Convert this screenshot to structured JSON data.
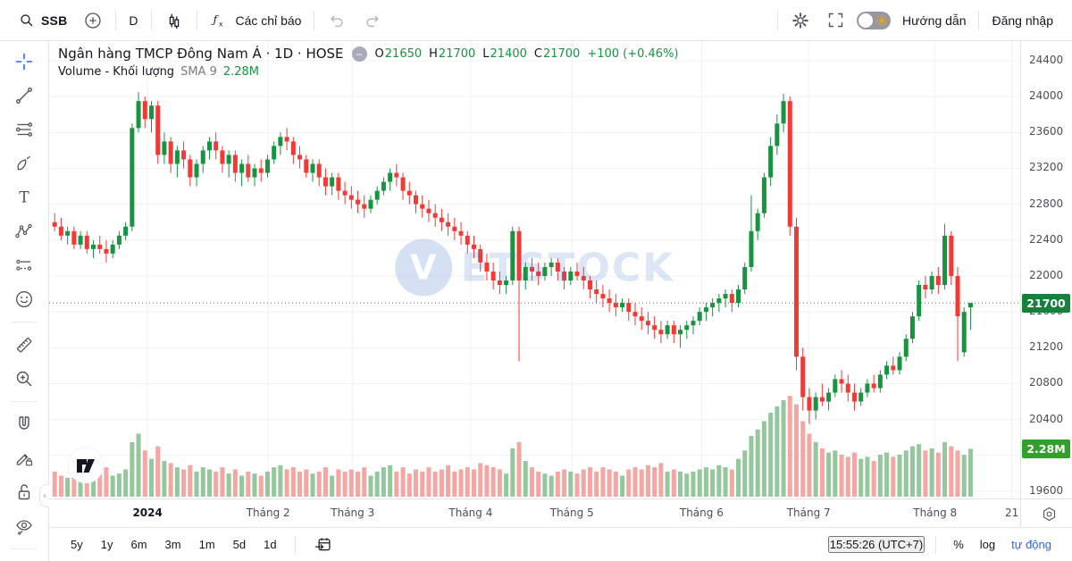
{
  "topbar": {
    "symbol": "SSB",
    "interval": "D",
    "indicators_label": "Các chỉ báo",
    "guide_label": "Hướng dẫn",
    "login_label": "Đăng nhập"
  },
  "legend": {
    "title": "Ngân hàng TMCP Đông Nam Á · 1D · HOSE",
    "ohlc": {
      "o_label": "O",
      "o": "21650",
      "h_label": "H",
      "h": "21700",
      "l_label": "L",
      "l": "21400",
      "c_label": "C",
      "c": "21700",
      "change": "+100 (+0.46%)"
    },
    "indicator": {
      "name": "Volume - Khối lượng",
      "param": "SMA 9",
      "value": "2.28M"
    }
  },
  "watermark": {
    "logo": "V",
    "text": "ETSTOCK"
  },
  "sidebar": {
    "tools": [
      "crosshair",
      "trend-line",
      "fib-retracement",
      "brush",
      "text",
      "xabcd-pattern",
      "projection",
      "emoji",
      "measure",
      "zoom-in",
      "magnet",
      "drawing-mode-lock",
      "lock-all-drawings",
      "hide-all-drawings"
    ]
  },
  "timeframes": [
    "5y",
    "1y",
    "6m",
    "3m",
    "1m",
    "5d",
    "1d"
  ],
  "statusbar": {
    "clock": "15:55:26 (UTC+7)",
    "percent": "%",
    "log": "log",
    "auto": "tự động"
  },
  "price_scale": {
    "last_price_label": "21700",
    "volume_label": "2.28M"
  },
  "colors": {
    "up": "#169440",
    "down": "#f23936",
    "vol_up": "#94c79c",
    "vol_down": "#f4a6a3",
    "accent": "#2962ff",
    "grid": "#eef1f5",
    "tag_price": "#15813c",
    "tag_volume": "#33a02c"
  },
  "chart_data": {
    "type": "candlestick",
    "title": "Ngân hàng TMCP Đông Nam Á (SSB) · 1D · HOSE",
    "last_price": 21700,
    "change": 100,
    "change_pct": 0.46,
    "volume_label": "2.28M",
    "y_axis": {
      "max": 24400,
      "min": 19600,
      "tick_step": 400,
      "ticks": [
        24400,
        24000,
        23600,
        23200,
        22800,
        22400,
        22000,
        21600,
        21200,
        20800,
        20400,
        20000,
        19600
      ]
    },
    "x_axis": {
      "ticks": [
        {
          "label": "2024",
          "index": 14.4,
          "bold": true
        },
        {
          "label": "Tháng 2",
          "index": 33.1
        },
        {
          "label": "Tháng 3",
          "index": 46.2
        },
        {
          "label": "Tháng 4",
          "index": 64.5
        },
        {
          "label": "Tháng 5",
          "index": 80.2
        },
        {
          "label": "Tháng 6",
          "index": 100.3
        },
        {
          "label": "Tháng 7",
          "index": 116.9
        },
        {
          "label": "Tháng 8",
          "index": 136.5
        },
        {
          "label": "21",
          "index": 148.4
        }
      ]
    },
    "series_format": "[open, high, low, close, volume_millions]",
    "series": [
      [
        22600,
        22700,
        22500,
        22550,
        1.2
      ],
      [
        22550,
        22650,
        22400,
        22450,
        1.0
      ],
      [
        22450,
        22550,
        22350,
        22500,
        0.9
      ],
      [
        22500,
        22550,
        22300,
        22350,
        1.1
      ],
      [
        22350,
        22500,
        22300,
        22450,
        0.8
      ],
      [
        22450,
        22500,
        22250,
        22300,
        1.3
      ],
      [
        22300,
        22400,
        22200,
        22350,
        1.5
      ],
      [
        22350,
        22450,
        22250,
        22300,
        1.2
      ],
      [
        22300,
        22400,
        22150,
        22250,
        1.4
      ],
      [
        22250,
        22400,
        22200,
        22350,
        1.0
      ],
      [
        22350,
        22500,
        22300,
        22450,
        1.1
      ],
      [
        22450,
        22600,
        22400,
        22550,
        1.3
      ],
      [
        22550,
        23700,
        22500,
        23650,
        2.6
      ],
      [
        23650,
        24050,
        23600,
        23950,
        3.0
      ],
      [
        23950,
        24000,
        23650,
        23750,
        2.2
      ],
      [
        23750,
        23950,
        23600,
        23900,
        1.8
      ],
      [
        23900,
        23950,
        23250,
        23350,
        2.4
      ],
      [
        23350,
        23600,
        23250,
        23500,
        1.7
      ],
      [
        23500,
        23550,
        23150,
        23250,
        1.6
      ],
      [
        23250,
        23450,
        23100,
        23400,
        1.4
      ],
      [
        23400,
        23500,
        23200,
        23300,
        1.3
      ],
      [
        23300,
        23350,
        23000,
        23100,
        1.5
      ],
      [
        23100,
        23300,
        23000,
        23250,
        1.2
      ],
      [
        23250,
        23450,
        23150,
        23400,
        1.4
      ],
      [
        23400,
        23550,
        23300,
        23500,
        1.3
      ],
      [
        23500,
        23600,
        23300,
        23400,
        1.2
      ],
      [
        23400,
        23450,
        23150,
        23250,
        1.4
      ],
      [
        23250,
        23400,
        23100,
        23350,
        1.1
      ],
      [
        23350,
        23400,
        23050,
        23150,
        1.3
      ],
      [
        23150,
        23300,
        23000,
        23250,
        1.0
      ],
      [
        23250,
        23350,
        23050,
        23100,
        1.2
      ],
      [
        23100,
        23250,
        23000,
        23200,
        1.1
      ],
      [
        23200,
        23300,
        23050,
        23150,
        1.0
      ],
      [
        23150,
        23350,
        23100,
        23300,
        1.2
      ],
      [
        23300,
        23500,
        23250,
        23450,
        1.4
      ],
      [
        23450,
        23600,
        23350,
        23550,
        1.5
      ],
      [
        23550,
        23650,
        23400,
        23500,
        1.3
      ],
      [
        23500,
        23550,
        23250,
        23350,
        1.4
      ],
      [
        23350,
        23450,
        23200,
        23300,
        1.2
      ],
      [
        23300,
        23350,
        23100,
        23150,
        1.3
      ],
      [
        23150,
        23300,
        23050,
        23250,
        1.1
      ],
      [
        23250,
        23300,
        23000,
        23100,
        1.2
      ],
      [
        23100,
        23200,
        22900,
        23000,
        1.4
      ],
      [
        23000,
        23150,
        22900,
        23100,
        1.0
      ],
      [
        23100,
        23150,
        22850,
        22950,
        1.3
      ],
      [
        22950,
        23050,
        22800,
        22900,
        1.2
      ],
      [
        22900,
        23000,
        22750,
        22850,
        1.3
      ],
      [
        22850,
        22950,
        22700,
        22800,
        1.2
      ],
      [
        22800,
        22900,
        22650,
        22750,
        1.4
      ],
      [
        22750,
        22900,
        22700,
        22850,
        1.0
      ],
      [
        22850,
        23000,
        22800,
        22950,
        1.2
      ],
      [
        22950,
        23100,
        22900,
        23050,
        1.4
      ],
      [
        23050,
        23200,
        22950,
        23150,
        1.5
      ],
      [
        23150,
        23250,
        23000,
        23100,
        1.2
      ],
      [
        23100,
        23150,
        22850,
        22950,
        1.4
      ],
      [
        22950,
        23050,
        22800,
        22900,
        1.1
      ],
      [
        22900,
        22950,
        22700,
        22800,
        1.3
      ],
      [
        22800,
        22900,
        22650,
        22750,
        1.2
      ],
      [
        22750,
        22850,
        22600,
        22700,
        1.4
      ],
      [
        22700,
        22800,
        22550,
        22650,
        1.2
      ],
      [
        22650,
        22750,
        22500,
        22600,
        1.3
      ],
      [
        22600,
        22700,
        22450,
        22550,
        1.5
      ],
      [
        22550,
        22650,
        22400,
        22500,
        1.2
      ],
      [
        22500,
        22600,
        22350,
        22450,
        1.3
      ],
      [
        22450,
        22500,
        22250,
        22350,
        1.4
      ],
      [
        22350,
        22450,
        22200,
        22300,
        1.3
      ],
      [
        22300,
        22350,
        22050,
        22150,
        1.6
      ],
      [
        22150,
        22250,
        21950,
        22050,
        1.5
      ],
      [
        22050,
        22150,
        21850,
        21950,
        1.4
      ],
      [
        21950,
        22050,
        21800,
        21900,
        1.3
      ],
      [
        21900,
        22000,
        21800,
        21950,
        1.1
      ],
      [
        21950,
        22550,
        21900,
        22500,
        2.3
      ],
      [
        22500,
        22550,
        21050,
        21950,
        2.6
      ],
      [
        21950,
        22150,
        21850,
        22100,
        1.7
      ],
      [
        22100,
        22200,
        21950,
        22050,
        1.4
      ],
      [
        22050,
        22150,
        21900,
        22000,
        1.2
      ],
      [
        22000,
        22150,
        21950,
        22100,
        1.1
      ],
      [
        22100,
        22200,
        22000,
        22150,
        1.0
      ],
      [
        22150,
        22200,
        21950,
        22050,
        1.2
      ],
      [
        22050,
        22100,
        21850,
        21950,
        1.3
      ],
      [
        21950,
        22100,
        21900,
        22050,
        1.2
      ],
      [
        22050,
        22150,
        21950,
        22000,
        1.1
      ],
      [
        22000,
        22100,
        21850,
        21950,
        1.3
      ],
      [
        21950,
        22000,
        21750,
        21850,
        1.4
      ],
      [
        21850,
        21950,
        21700,
        21800,
        1.2
      ],
      [
        21800,
        21900,
        21650,
        21750,
        1.4
      ],
      [
        21750,
        21850,
        21600,
        21700,
        1.3
      ],
      [
        21700,
        21800,
        21550,
        21650,
        1.2
      ],
      [
        21650,
        21750,
        21600,
        21700,
        1.0
      ],
      [
        21700,
        21750,
        21500,
        21600,
        1.3
      ],
      [
        21600,
        21700,
        21450,
        21550,
        1.4
      ],
      [
        21550,
        21650,
        21400,
        21500,
        1.3
      ],
      [
        21500,
        21600,
        21350,
        21450,
        1.5
      ],
      [
        21450,
        21550,
        21300,
        21400,
        1.4
      ],
      [
        21400,
        21500,
        21250,
        21350,
        1.6
      ],
      [
        21350,
        21500,
        21300,
        21450,
        1.2
      ],
      [
        21450,
        21500,
        21250,
        21350,
        1.3
      ],
      [
        21350,
        21450,
        21200,
        21400,
        1.2
      ],
      [
        21400,
        21500,
        21300,
        21450,
        1.1
      ],
      [
        21450,
        21550,
        21350,
        21500,
        1.2
      ],
      [
        21500,
        21650,
        21450,
        21600,
        1.3
      ],
      [
        21600,
        21700,
        21500,
        21650,
        1.4
      ],
      [
        21650,
        21750,
        21550,
        21700,
        1.3
      ],
      [
        21700,
        21800,
        21600,
        21750,
        1.5
      ],
      [
        21750,
        21850,
        21650,
        21800,
        1.4
      ],
      [
        21800,
        21850,
        21600,
        21700,
        1.3
      ],
      [
        21700,
        21900,
        21650,
        21850,
        1.8
      ],
      [
        21850,
        22150,
        21800,
        22100,
        2.2
      ],
      [
        22100,
        22900,
        22050,
        22500,
        2.9
      ],
      [
        22500,
        22750,
        22400,
        22700,
        3.2
      ],
      [
        22700,
        23150,
        22650,
        23100,
        3.6
      ],
      [
        23100,
        23550,
        23000,
        23450,
        4.0
      ],
      [
        23450,
        23800,
        23350,
        23700,
        4.3
      ],
      [
        23700,
        24030,
        23600,
        23950,
        4.6
      ],
      [
        23950,
        24000,
        22450,
        22550,
        4.8
      ],
      [
        22550,
        22650,
        20950,
        21100,
        4.4
      ],
      [
        21100,
        21200,
        20500,
        20650,
        3.6
      ],
      [
        20650,
        20750,
        20350,
        20500,
        3.0
      ],
      [
        20500,
        20700,
        20400,
        20650,
        2.6
      ],
      [
        20650,
        20800,
        20550,
        20600,
        2.3
      ],
      [
        20600,
        20750,
        20500,
        20700,
        2.1
      ],
      [
        20700,
        20900,
        20650,
        20850,
        2.2
      ],
      [
        20850,
        20950,
        20700,
        20800,
        2.0
      ],
      [
        20800,
        20900,
        20600,
        20700,
        1.9
      ],
      [
        20700,
        20800,
        20500,
        20600,
        2.1
      ],
      [
        20600,
        20750,
        20550,
        20700,
        1.8
      ],
      [
        20700,
        20850,
        20650,
        20800,
        1.9
      ],
      [
        20800,
        20900,
        20700,
        20750,
        1.7
      ],
      [
        20750,
        20950,
        20700,
        20900,
        2.0
      ],
      [
        20900,
        21050,
        20850,
        21000,
        2.1
      ],
      [
        21000,
        21100,
        20900,
        20950,
        1.9
      ],
      [
        20950,
        21150,
        20900,
        21100,
        2.0
      ],
      [
        21100,
        21350,
        21050,
        21300,
        2.2
      ],
      [
        21300,
        21600,
        21250,
        21550,
        2.4
      ],
      [
        21550,
        21950,
        21500,
        21900,
        2.5
      ],
      [
        21900,
        22000,
        21750,
        21850,
        2.2
      ],
      [
        21850,
        22050,
        21800,
        22000,
        2.3
      ],
      [
        22000,
        22100,
        21800,
        21900,
        2.1
      ],
      [
        21900,
        22580,
        21850,
        22450,
        2.6
      ],
      [
        22450,
        22500,
        21900,
        22000,
        2.4
      ],
      [
        22000,
        22100,
        21050,
        21550,
        2.2
      ],
      [
        21150,
        21650,
        21100,
        21600,
        2.0
      ],
      [
        21650,
        21700,
        21400,
        21700,
        2.28
      ]
    ]
  }
}
